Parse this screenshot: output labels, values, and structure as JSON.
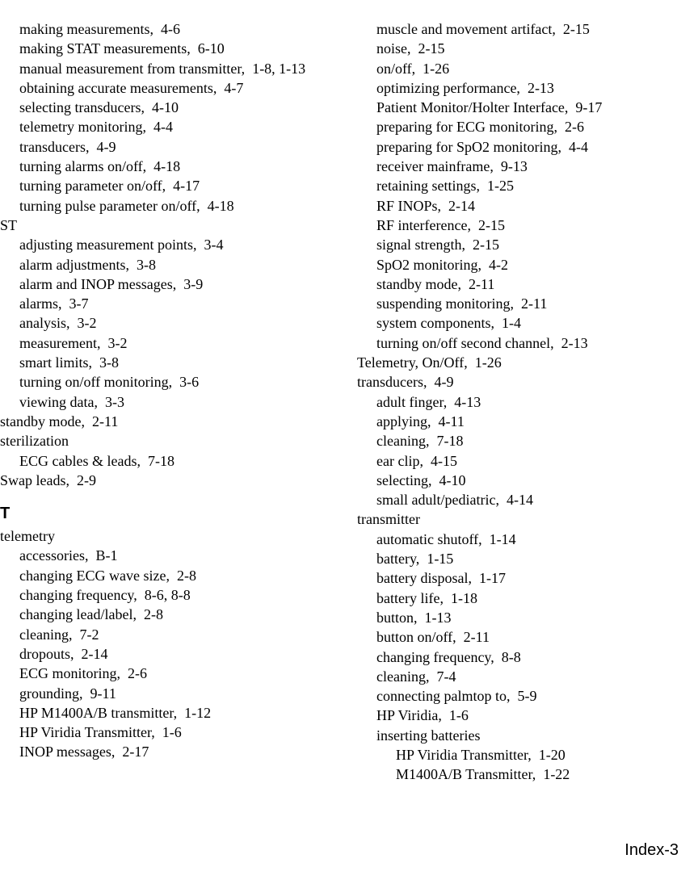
{
  "page_number": "Index-3",
  "left_column": [
    {
      "lvl": 1,
      "text": "making measurements,",
      "ref": "  4-6"
    },
    {
      "lvl": 1,
      "text": "making STAT measurements,",
      "ref": "  6-10"
    },
    {
      "lvl": 1,
      "text": "manual measurement from transmitter,",
      "ref": "  1-8, 1-13"
    },
    {
      "lvl": 1,
      "text": "obtaining accurate measurements,",
      "ref": "  4-7"
    },
    {
      "lvl": 1,
      "text": "selecting transducers,",
      "ref": "  4-10"
    },
    {
      "lvl": 1,
      "text": "telemetry monitoring,",
      "ref": "  4-4"
    },
    {
      "lvl": 1,
      "text": "transducers,",
      "ref": "  4-9"
    },
    {
      "lvl": 1,
      "text": "turning alarms on/off,",
      "ref": "  4-18"
    },
    {
      "lvl": 1,
      "text": "turning parameter on/off,",
      "ref": "  4-17"
    },
    {
      "lvl": 1,
      "text": "turning pulse parameter on/off,",
      "ref": "  4-18"
    },
    {
      "lvl": 0,
      "text": "ST",
      "ref": ""
    },
    {
      "lvl": 1,
      "text": "adjusting measurement points,",
      "ref": "  3-4"
    },
    {
      "lvl": 1,
      "text": "alarm adjustments,",
      "ref": "  3-8"
    },
    {
      "lvl": 1,
      "text": "alarm and INOP messages,",
      "ref": "  3-9"
    },
    {
      "lvl": 1,
      "text": "alarms,",
      "ref": "  3-7"
    },
    {
      "lvl": 1,
      "text": "analysis,",
      "ref": "  3-2"
    },
    {
      "lvl": 1,
      "text": "measurement,",
      "ref": "  3-2"
    },
    {
      "lvl": 1,
      "text": "smart limits,",
      "ref": "  3-8"
    },
    {
      "lvl": 1,
      "text": "turning on/off monitoring,",
      "ref": "  3-6"
    },
    {
      "lvl": 1,
      "text": "viewing data,",
      "ref": "  3-3"
    },
    {
      "lvl": 0,
      "text": "standby mode,",
      "ref": "  2-11"
    },
    {
      "lvl": 0,
      "text": "sterilization",
      "ref": ""
    },
    {
      "lvl": 1,
      "text": "ECG cables & leads,",
      "ref": "  7-18"
    },
    {
      "lvl": 0,
      "text": "Swap leads,",
      "ref": "  2-9"
    },
    {
      "lvl": -1,
      "text": "T",
      "ref": ""
    },
    {
      "lvl": 0,
      "text": "telemetry",
      "ref": ""
    },
    {
      "lvl": 1,
      "text": "accessories,",
      "ref": "  B-1"
    },
    {
      "lvl": 1,
      "text": "changing ECG wave size,",
      "ref": "  2-8"
    },
    {
      "lvl": 1,
      "text": "changing frequency,",
      "ref": "  8-6, 8-8"
    },
    {
      "lvl": 1,
      "text": "changing lead/label,",
      "ref": "  2-8"
    },
    {
      "lvl": 1,
      "text": "cleaning,",
      "ref": "  7-2"
    },
    {
      "lvl": 1,
      "text": "dropouts,",
      "ref": "  2-14"
    },
    {
      "lvl": 1,
      "text": "ECG monitoring,",
      "ref": "  2-6"
    },
    {
      "lvl": 1,
      "text": "grounding,",
      "ref": "  9-11"
    },
    {
      "lvl": 1,
      "text": "HP M1400A/B transmitter,",
      "ref": "  1-12"
    },
    {
      "lvl": 1,
      "text": "HP Viridia Transmitter,",
      "ref": "  1-6"
    },
    {
      "lvl": 1,
      "text": "INOP messages,",
      "ref": "  2-17"
    }
  ],
  "right_column": [
    {
      "lvl": 1,
      "text": "muscle and movement artifact,",
      "ref": "  2-15"
    },
    {
      "lvl": 1,
      "text": "noise,",
      "ref": "  2-15"
    },
    {
      "lvl": 1,
      "text": "on/off,",
      "ref": "  1-26"
    },
    {
      "lvl": 1,
      "text": "optimizing performance,",
      "ref": "  2-13"
    },
    {
      "lvl": 1,
      "text": "Patient Monitor/Holter Interface,",
      "ref": "  9-17"
    },
    {
      "lvl": 1,
      "text": "preparing for ECG monitoring,",
      "ref": "  2-6"
    },
    {
      "lvl": 1,
      "text": "preparing for SpO2 monitoring,",
      "ref": "  4-4"
    },
    {
      "lvl": 1,
      "text": "receiver mainframe,",
      "ref": "  9-13"
    },
    {
      "lvl": 1,
      "text": "retaining settings,",
      "ref": "  1-25"
    },
    {
      "lvl": 1,
      "text": "RF INOPs,",
      "ref": "  2-14"
    },
    {
      "lvl": 1,
      "text": "RF interference,",
      "ref": "  2-15"
    },
    {
      "lvl": 1,
      "text": "signal strength,",
      "ref": "  2-15"
    },
    {
      "lvl": 1,
      "text": "SpO2 monitoring,",
      "ref": "  4-2"
    },
    {
      "lvl": 1,
      "text": "standby mode,",
      "ref": "  2-11"
    },
    {
      "lvl": 1,
      "text": "suspending monitoring,",
      "ref": "  2-11"
    },
    {
      "lvl": 1,
      "text": "system components,",
      "ref": "  1-4"
    },
    {
      "lvl": 1,
      "text": "turning on/off second channel,",
      "ref": "  2-13"
    },
    {
      "lvl": 0,
      "text": "Telemetry, On/Off,",
      "ref": "  1-26",
      "pad": 447
    },
    {
      "lvl": 0,
      "text": "transducers,",
      "ref": "  4-9",
      "pad": 447
    },
    {
      "lvl": 1,
      "text": "adult finger,",
      "ref": "  4-13"
    },
    {
      "lvl": 1,
      "text": "applying,",
      "ref": "  4-11"
    },
    {
      "lvl": 1,
      "text": "cleaning,",
      "ref": "  7-18"
    },
    {
      "lvl": 1,
      "text": "ear clip,",
      "ref": "  4-15"
    },
    {
      "lvl": 1,
      "text": "selecting,",
      "ref": "  4-10"
    },
    {
      "lvl": 1,
      "text": "small adult/pediatric,",
      "ref": "  4-14"
    },
    {
      "lvl": 0,
      "text": "transmitter",
      "ref": "",
      "pad": 447
    },
    {
      "lvl": 1,
      "text": "automatic shutoff,",
      "ref": "  1-14"
    },
    {
      "lvl": 1,
      "text": "battery,",
      "ref": "  1-15"
    },
    {
      "lvl": 1,
      "text": "battery disposal,",
      "ref": "  1-17"
    },
    {
      "lvl": 1,
      "text": "battery life,",
      "ref": "  1-18"
    },
    {
      "lvl": 1,
      "text": "button,",
      "ref": "  1-13"
    },
    {
      "lvl": 1,
      "text": "button on/off,",
      "ref": "  2-11"
    },
    {
      "lvl": 1,
      "text": "changing frequency,",
      "ref": "  8-8"
    },
    {
      "lvl": 1,
      "text": "cleaning,",
      "ref": "  7-4"
    },
    {
      "lvl": 1,
      "text": "connecting palmtop to,",
      "ref": "  5-9"
    },
    {
      "lvl": 1,
      "text": "HP Viridia,",
      "ref": "  1-6"
    },
    {
      "lvl": 1,
      "text": "inserting batteries",
      "ref": ""
    },
    {
      "lvl": 2,
      "text": "HP Viridia Transmitter,",
      "ref": "  1-20"
    },
    {
      "lvl": 2,
      "text": "M1400A/B Transmitter,",
      "ref": "  1-22"
    }
  ]
}
